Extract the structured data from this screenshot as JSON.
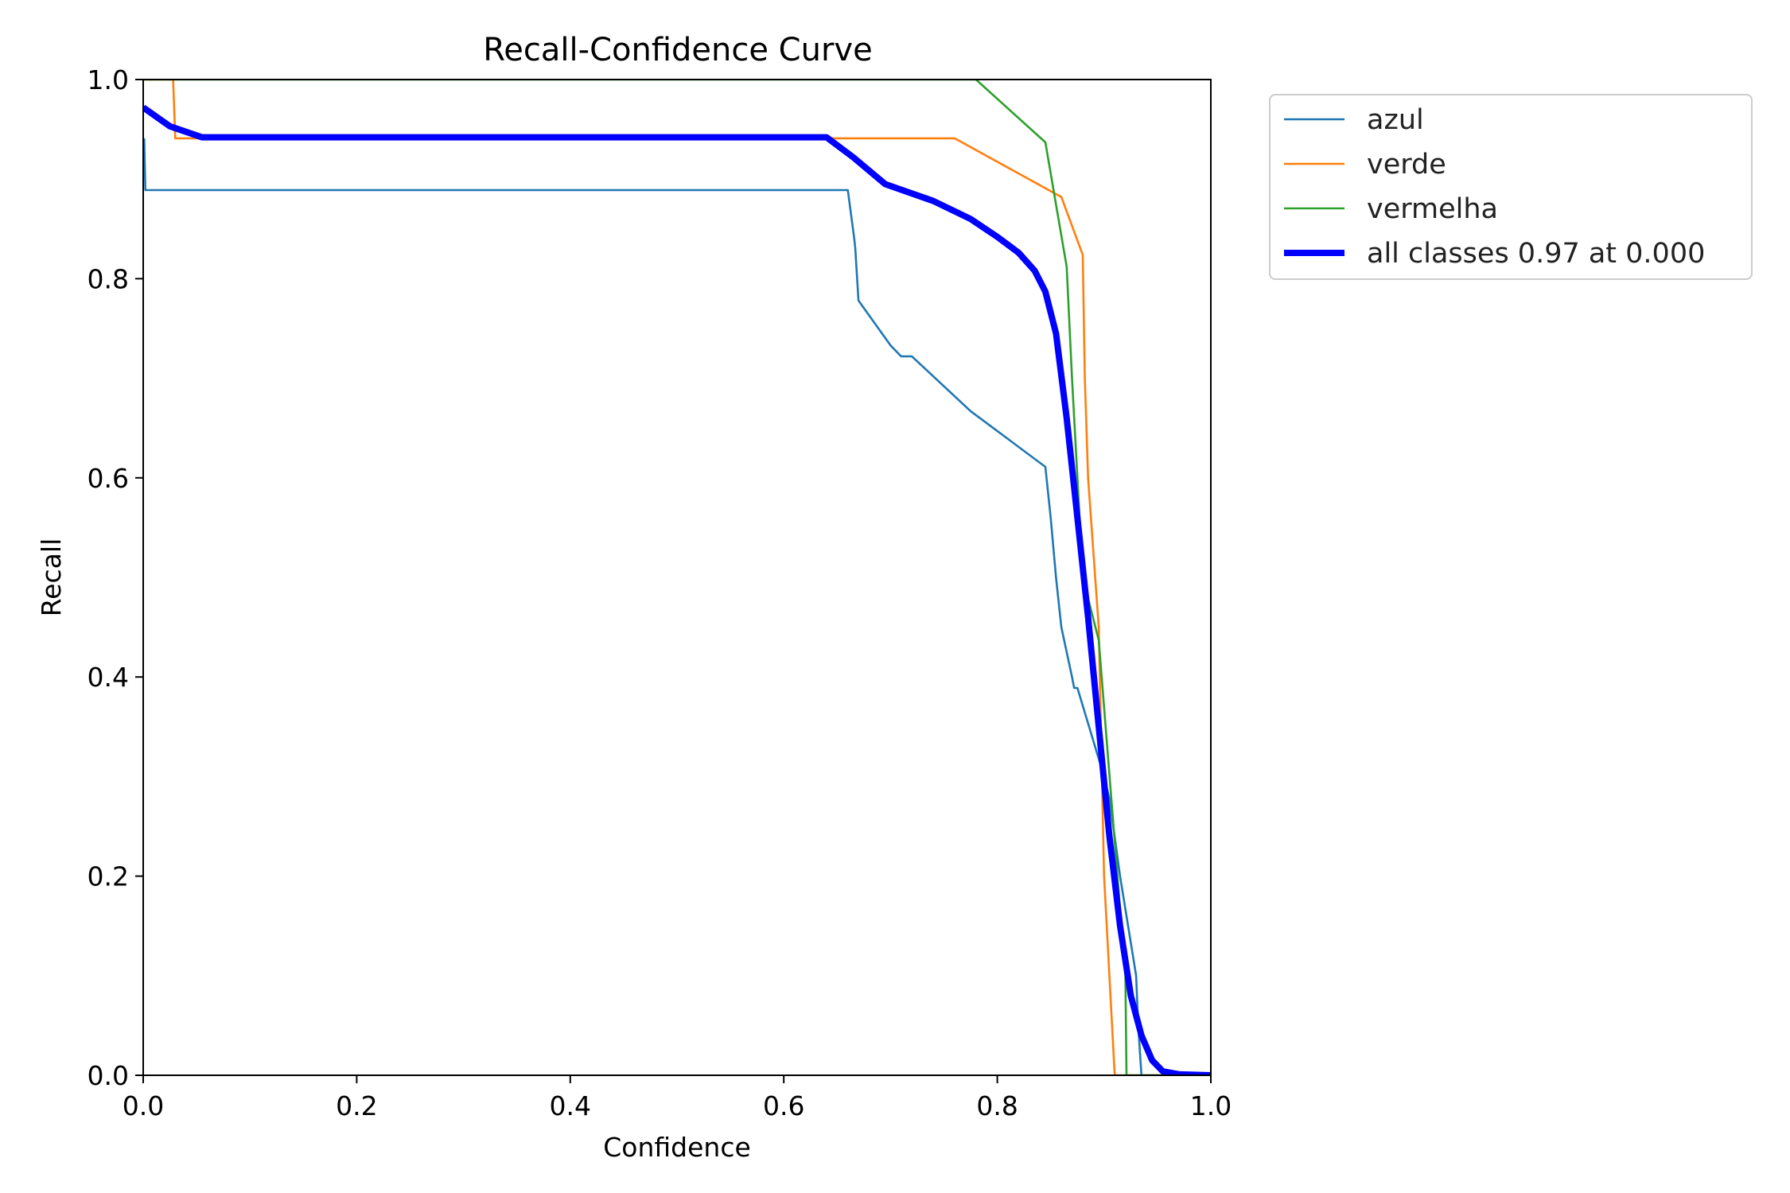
{
  "chart_data": {
    "type": "line",
    "title": "Recall-Confidence Curve",
    "xlabel": "Confidence",
    "ylabel": "Recall",
    "xlim": [
      0,
      1
    ],
    "ylim": [
      0,
      1
    ],
    "xticks": [
      "0.0",
      "0.2",
      "0.4",
      "0.6",
      "0.8",
      "1.0"
    ],
    "yticks": [
      "0.0",
      "0.2",
      "0.4",
      "0.6",
      "0.8",
      "1.0"
    ],
    "grid": false,
    "legend_position": "outside-top-right",
    "series": [
      {
        "name": "azul",
        "color": "#1f77b4",
        "x": [
          0.0,
          0.001,
          0.002,
          0.66,
          0.666,
          0.667,
          0.67,
          0.7,
          0.71,
          0.72,
          0.775,
          0.845,
          0.85,
          0.855,
          0.86,
          0.87,
          0.872,
          0.875,
          0.9,
          0.905,
          0.915,
          0.93,
          0.932,
          0.935,
          1.0
        ],
        "y": [
          0.94,
          0.94,
          0.889,
          0.889,
          0.84,
          0.83,
          0.778,
          0.733,
          0.722,
          0.722,
          0.667,
          0.611,
          0.56,
          0.5,
          0.45,
          0.4,
          0.389,
          0.389,
          0.3,
          0.278,
          0.2,
          0.1,
          0.05,
          0.0,
          0.0
        ]
      },
      {
        "name": "verde",
        "color": "#ff7f0e",
        "x": [
          0.0,
          0.028,
          0.03,
          0.76,
          0.86,
          0.88,
          0.882,
          0.885,
          0.895,
          0.9,
          0.905,
          0.91,
          1.0
        ],
        "y": [
          1.0,
          1.0,
          0.941,
          0.941,
          0.882,
          0.824,
          0.7,
          0.6,
          0.45,
          0.2,
          0.1,
          0.0,
          0.0
        ]
      },
      {
        "name": "vermelha",
        "color": "#2ca02c",
        "x": [
          0.0,
          0.78,
          0.845,
          0.865,
          0.87,
          0.875,
          0.88,
          0.895,
          0.92,
          0.921,
          1.0
        ],
        "y": [
          1.0,
          1.0,
          0.937,
          0.812,
          0.7,
          0.6,
          0.5,
          0.437,
          0.1,
          0.0,
          0.0
        ]
      },
      {
        "name": "all classes 0.97 at 0.000",
        "color": "#0000ff",
        "x": [
          0.0,
          0.025,
          0.055,
          0.3,
          0.6,
          0.64,
          0.665,
          0.695,
          0.74,
          0.775,
          0.8,
          0.82,
          0.835,
          0.845,
          0.855,
          0.865,
          0.875,
          0.885,
          0.895,
          0.905,
          0.915,
          0.925,
          0.935,
          0.945,
          0.955,
          0.97,
          1.0
        ],
        "y": [
          0.972,
          0.953,
          0.942,
          0.942,
          0.942,
          0.942,
          0.922,
          0.895,
          0.878,
          0.86,
          0.842,
          0.826,
          0.808,
          0.787,
          0.745,
          0.66,
          0.56,
          0.46,
          0.35,
          0.24,
          0.15,
          0.08,
          0.04,
          0.015,
          0.004,
          0.001,
          0.0
        ]
      }
    ]
  }
}
